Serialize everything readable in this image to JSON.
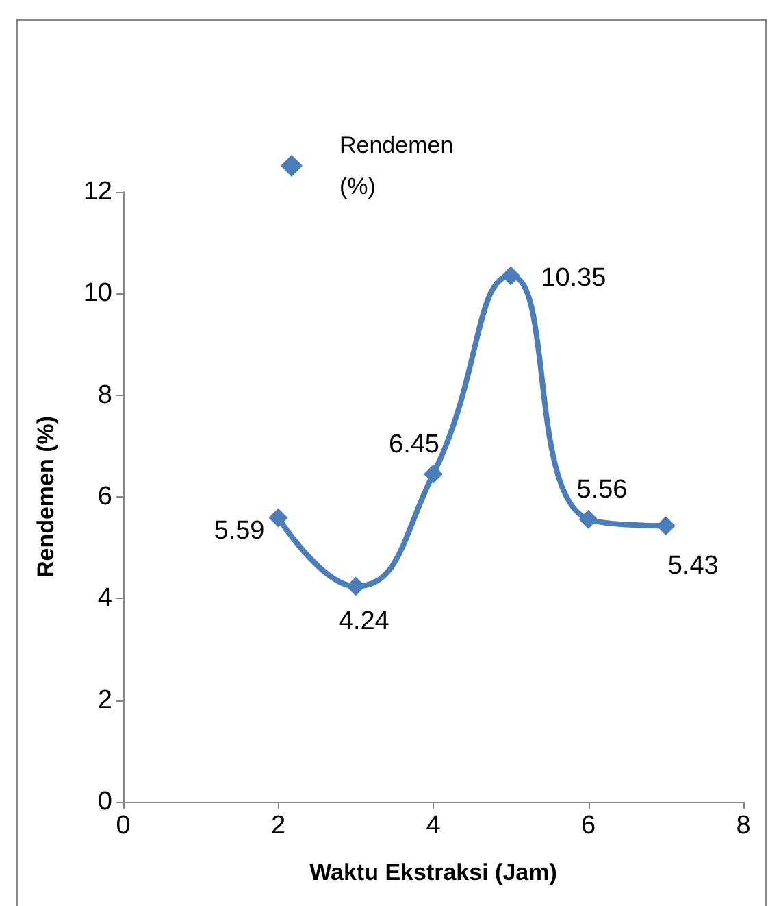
{
  "chart_data": {
    "type": "line",
    "xlabel": "Waktu Ekstraksi (Jam)",
    "ylabel": "Rendemen (%)",
    "x": [
      2,
      3,
      4,
      5,
      6,
      7
    ],
    "series": [
      {
        "name": "Rendemen (%)",
        "color": "#4a7ebb",
        "values": [
          5.59,
          4.24,
          6.45,
          10.35,
          5.56,
          5.43
        ]
      }
    ],
    "xlim": [
      0,
      8
    ],
    "xticks": [
      0,
      2,
      4,
      6,
      8
    ],
    "ylim": [
      0,
      12
    ],
    "yticks": [
      0,
      2,
      4,
      6,
      8,
      10,
      12
    ],
    "grid": false,
    "legend": "top",
    "marker": "diamond",
    "line_style": "solid",
    "data_labels": true
  }
}
